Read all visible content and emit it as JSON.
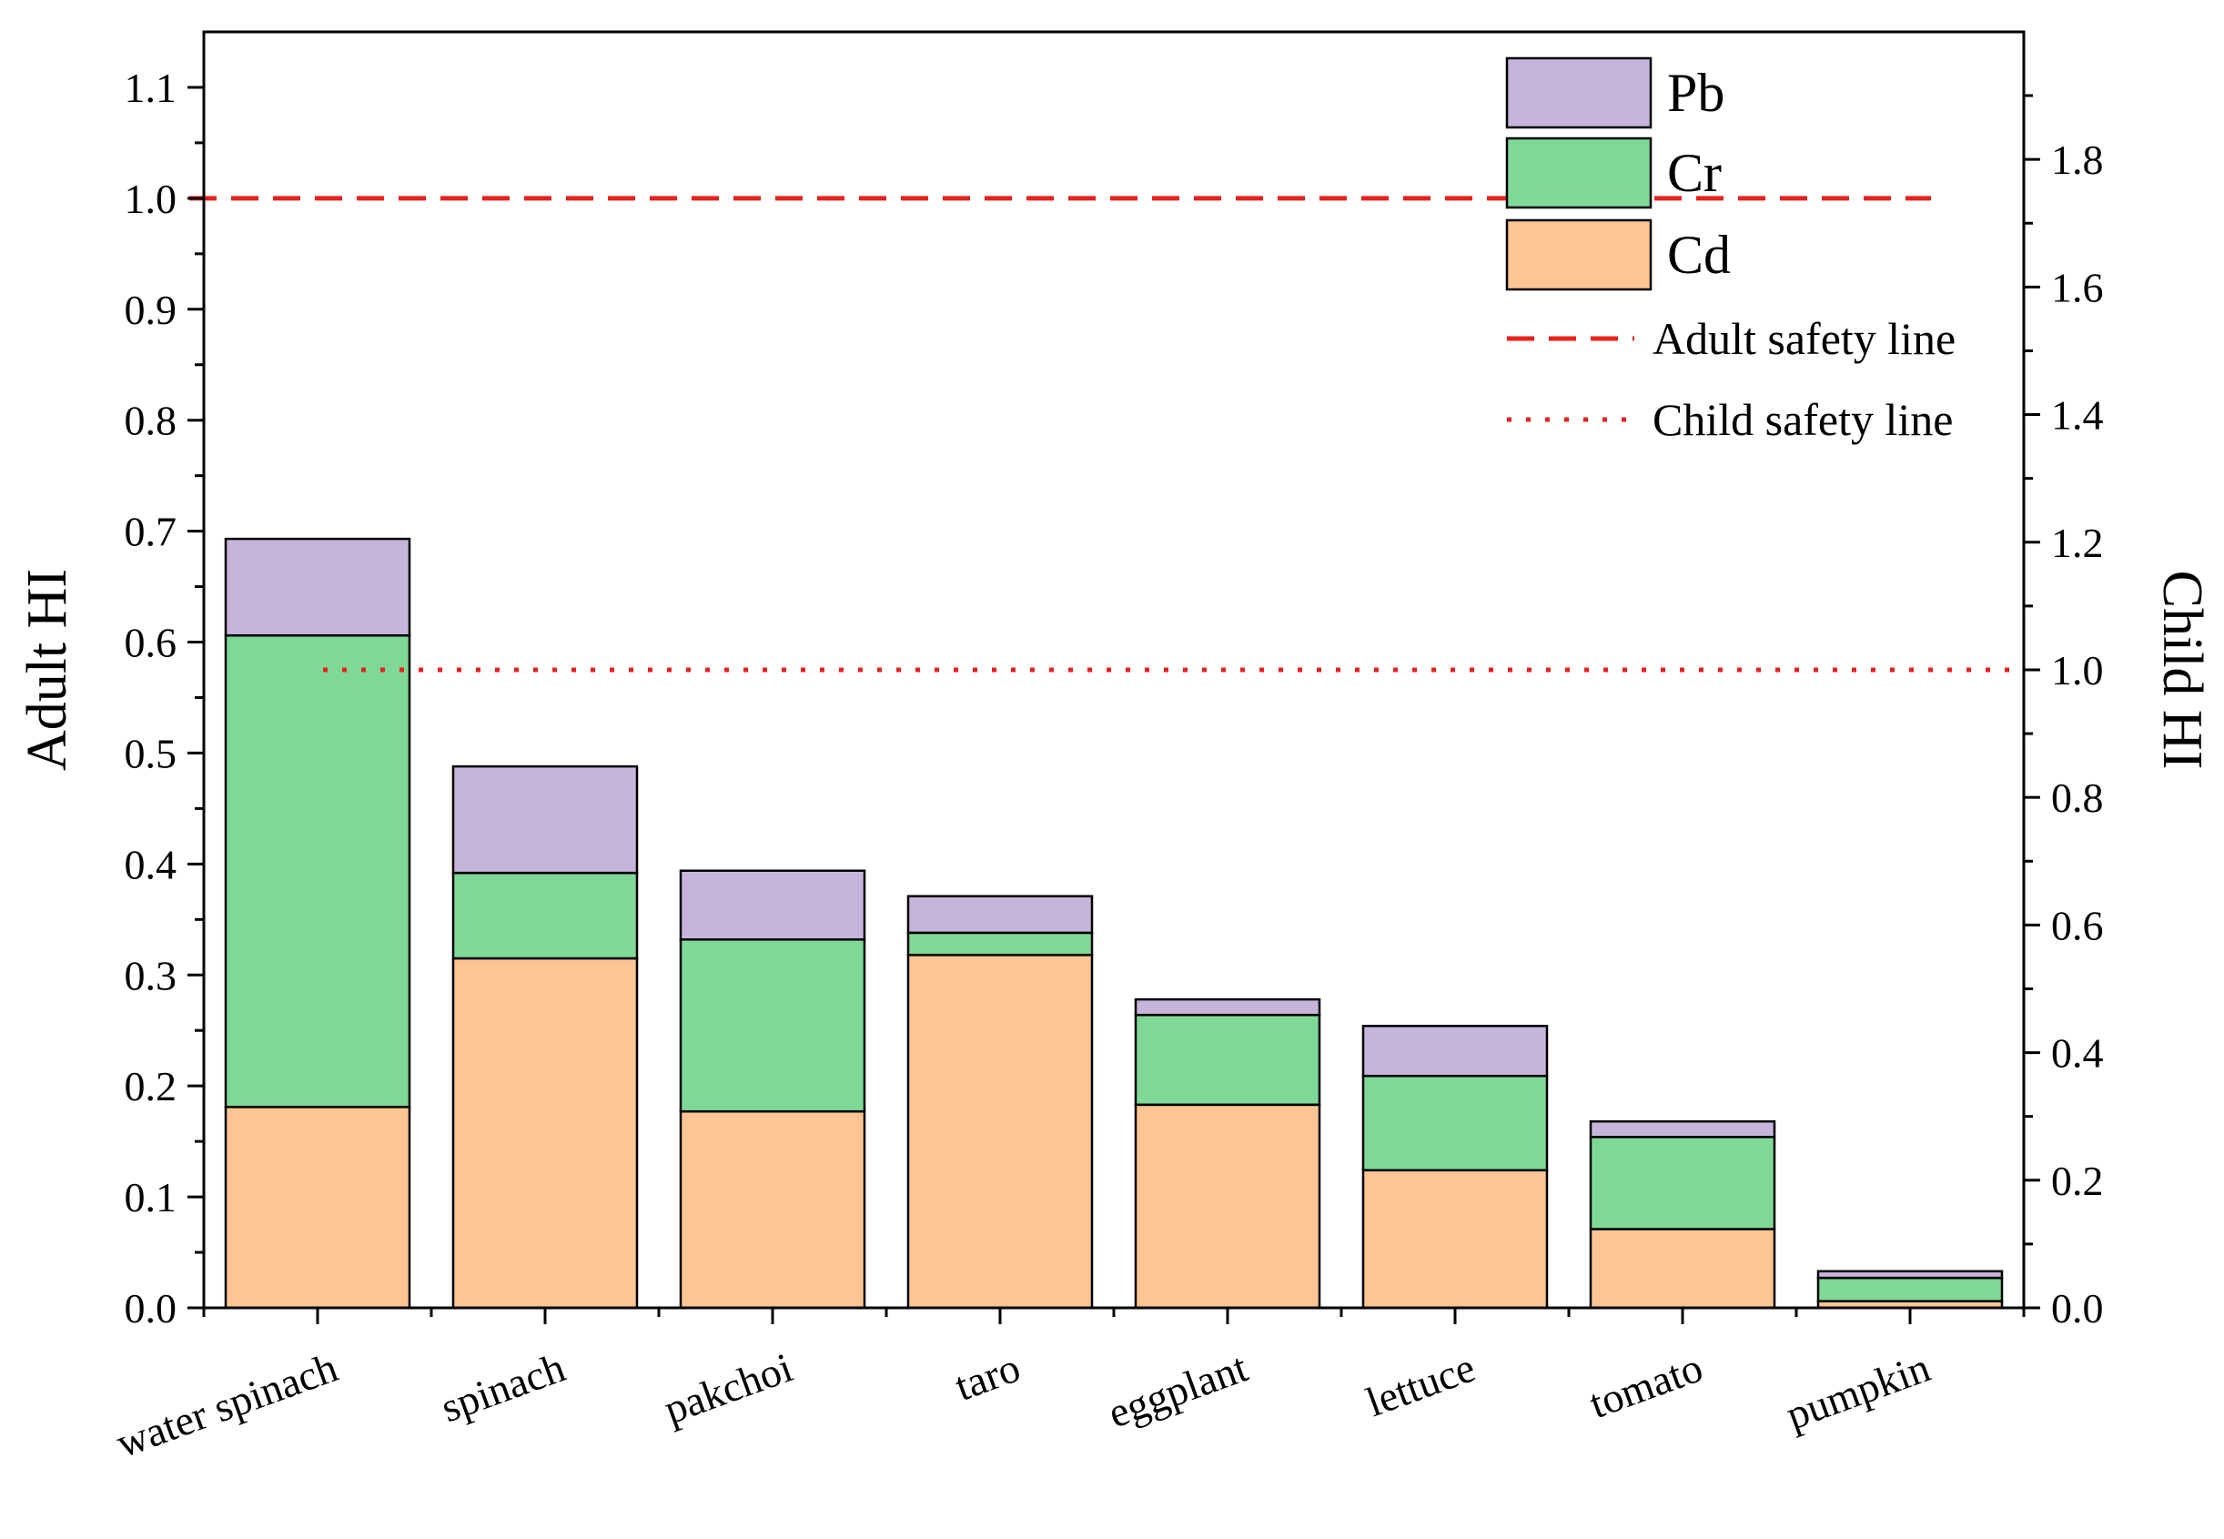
{
  "chart_data": {
    "type": "bar",
    "stacked": true,
    "categories": [
      "water spinach",
      "spinach",
      "pakchoi",
      "taro",
      "eggplant",
      "lettuce",
      "tomato",
      "pumpkin"
    ],
    "series": [
      {
        "name": "Cd",
        "color": "#FDC593",
        "values": [
          0.181,
          0.315,
          0.177,
          0.318,
          0.183,
          0.124,
          0.071,
          0.006
        ]
      },
      {
        "name": "Cr",
        "color": "#7FD896",
        "values": [
          0.425,
          0.077,
          0.155,
          0.02,
          0.081,
          0.085,
          0.083,
          0.021
        ]
      },
      {
        "name": "Pb",
        "color": "#C7B4DA",
        "values": [
          0.087,
          0.096,
          0.062,
          0.033,
          0.014,
          0.045,
          0.014,
          0.006
        ]
      }
    ],
    "reference_lines": [
      {
        "name": "Adult safety line",
        "axis": "left",
        "value": 1.0,
        "color": "#E8201E",
        "style": "dashed"
      },
      {
        "name": "Child safety line",
        "axis": "right",
        "value": 1.0,
        "color": "#E8201E",
        "style": "dotted"
      }
    ],
    "ylabel": "Adult HI",
    "y2label": "Child HI",
    "ylim": [
      0,
      1.15
    ],
    "y2lim": [
      0,
      1.9999
    ],
    "yticks": [
      "0.0",
      "0.1",
      "0.2",
      "0.3",
      "0.4",
      "0.5",
      "0.6",
      "0.7",
      "0.8",
      "0.9",
      "1.0",
      "1.1"
    ],
    "y2ticks": [
      "0.0",
      "0.2",
      "0.4",
      "0.6",
      "0.8",
      "1.0",
      "1.2",
      "1.4",
      "1.6",
      "1.8"
    ],
    "legend": {
      "position": "top-right",
      "entries": [
        "Pb",
        "Cr",
        "Cd",
        "Adult safety line",
        "Child safety line"
      ]
    }
  }
}
